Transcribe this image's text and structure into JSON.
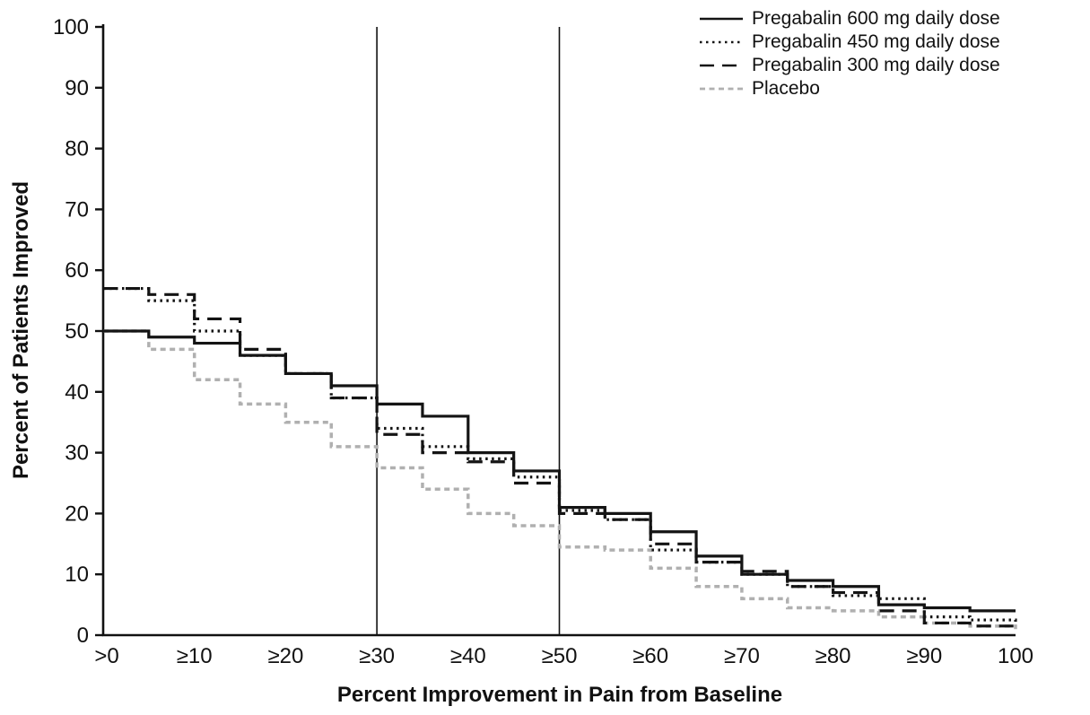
{
  "figure": {
    "background": "#ffffff",
    "text_color": "#111111",
    "axis_color": "#111111",
    "reference_line_color": "#111111"
  },
  "chart_data": {
    "type": "line",
    "title": "",
    "xlabel": "Percent Improvement in Pain from Baseline",
    "ylabel": "Percent of Patients Improved",
    "xlim": [
      0,
      100
    ],
    "ylim": [
      0,
      100
    ],
    "grid": false,
    "legend_position": "top-right",
    "x_tick_values": [
      0,
      10,
      20,
      30,
      40,
      50,
      60,
      70,
      80,
      90,
      100
    ],
    "x_tick_labels": [
      ">0",
      "≥10",
      "≥20",
      "≥30",
      "≥40",
      "≥50",
      "≥60",
      "≥70",
      "≥80",
      "≥90",
      "100"
    ],
    "y_tick_values": [
      0,
      10,
      20,
      30,
      40,
      50,
      60,
      70,
      80,
      90,
      100
    ],
    "y_tick_labels": [
      "0",
      "10",
      "20",
      "30",
      "40",
      "50",
      "60",
      "70",
      "80",
      "90",
      "100"
    ],
    "reference_lines_x": [
      30,
      50
    ],
    "x": [
      0,
      5,
      10,
      15,
      20,
      25,
      30,
      35,
      40,
      45,
      50,
      55,
      60,
      65,
      70,
      75,
      80,
      85,
      90,
      95,
      100
    ],
    "series": [
      {
        "name": "Pregabalin 600 mg daily dose",
        "line_style": "solid",
        "color": "#141414",
        "values": [
          50,
          49,
          48,
          46,
          43,
          41,
          38,
          36,
          30,
          27,
          21,
          20,
          17,
          13,
          10,
          9,
          8,
          5,
          4.5,
          4,
          4
        ]
      },
      {
        "name": "Pregabalin 450 mg daily dose",
        "line_style": "dotted",
        "color": "#141414",
        "values": [
          57,
          55,
          50,
          46,
          43,
          39,
          34,
          31,
          29,
          26,
          20.5,
          19,
          14,
          12,
          10,
          8,
          6.5,
          6,
          3,
          2.5,
          2
        ]
      },
      {
        "name": "Pregabalin 300 mg daily dose",
        "line_style": "dashed",
        "color": "#141414",
        "values": [
          57,
          56,
          52,
          47,
          43,
          39,
          33,
          30,
          28.5,
          25,
          20,
          19,
          15,
          12,
          10.5,
          8,
          7,
          4,
          2,
          1.5,
          1
        ]
      },
      {
        "name": "Placebo",
        "line_style": "dashed-fine",
        "color": "#b0b0b0",
        "values": [
          50,
          47,
          42,
          38,
          35,
          31,
          27.5,
          24,
          20,
          18,
          14.5,
          14,
          11,
          8,
          6,
          4.5,
          4,
          3,
          2,
          1.5,
          1
        ]
      }
    ]
  }
}
